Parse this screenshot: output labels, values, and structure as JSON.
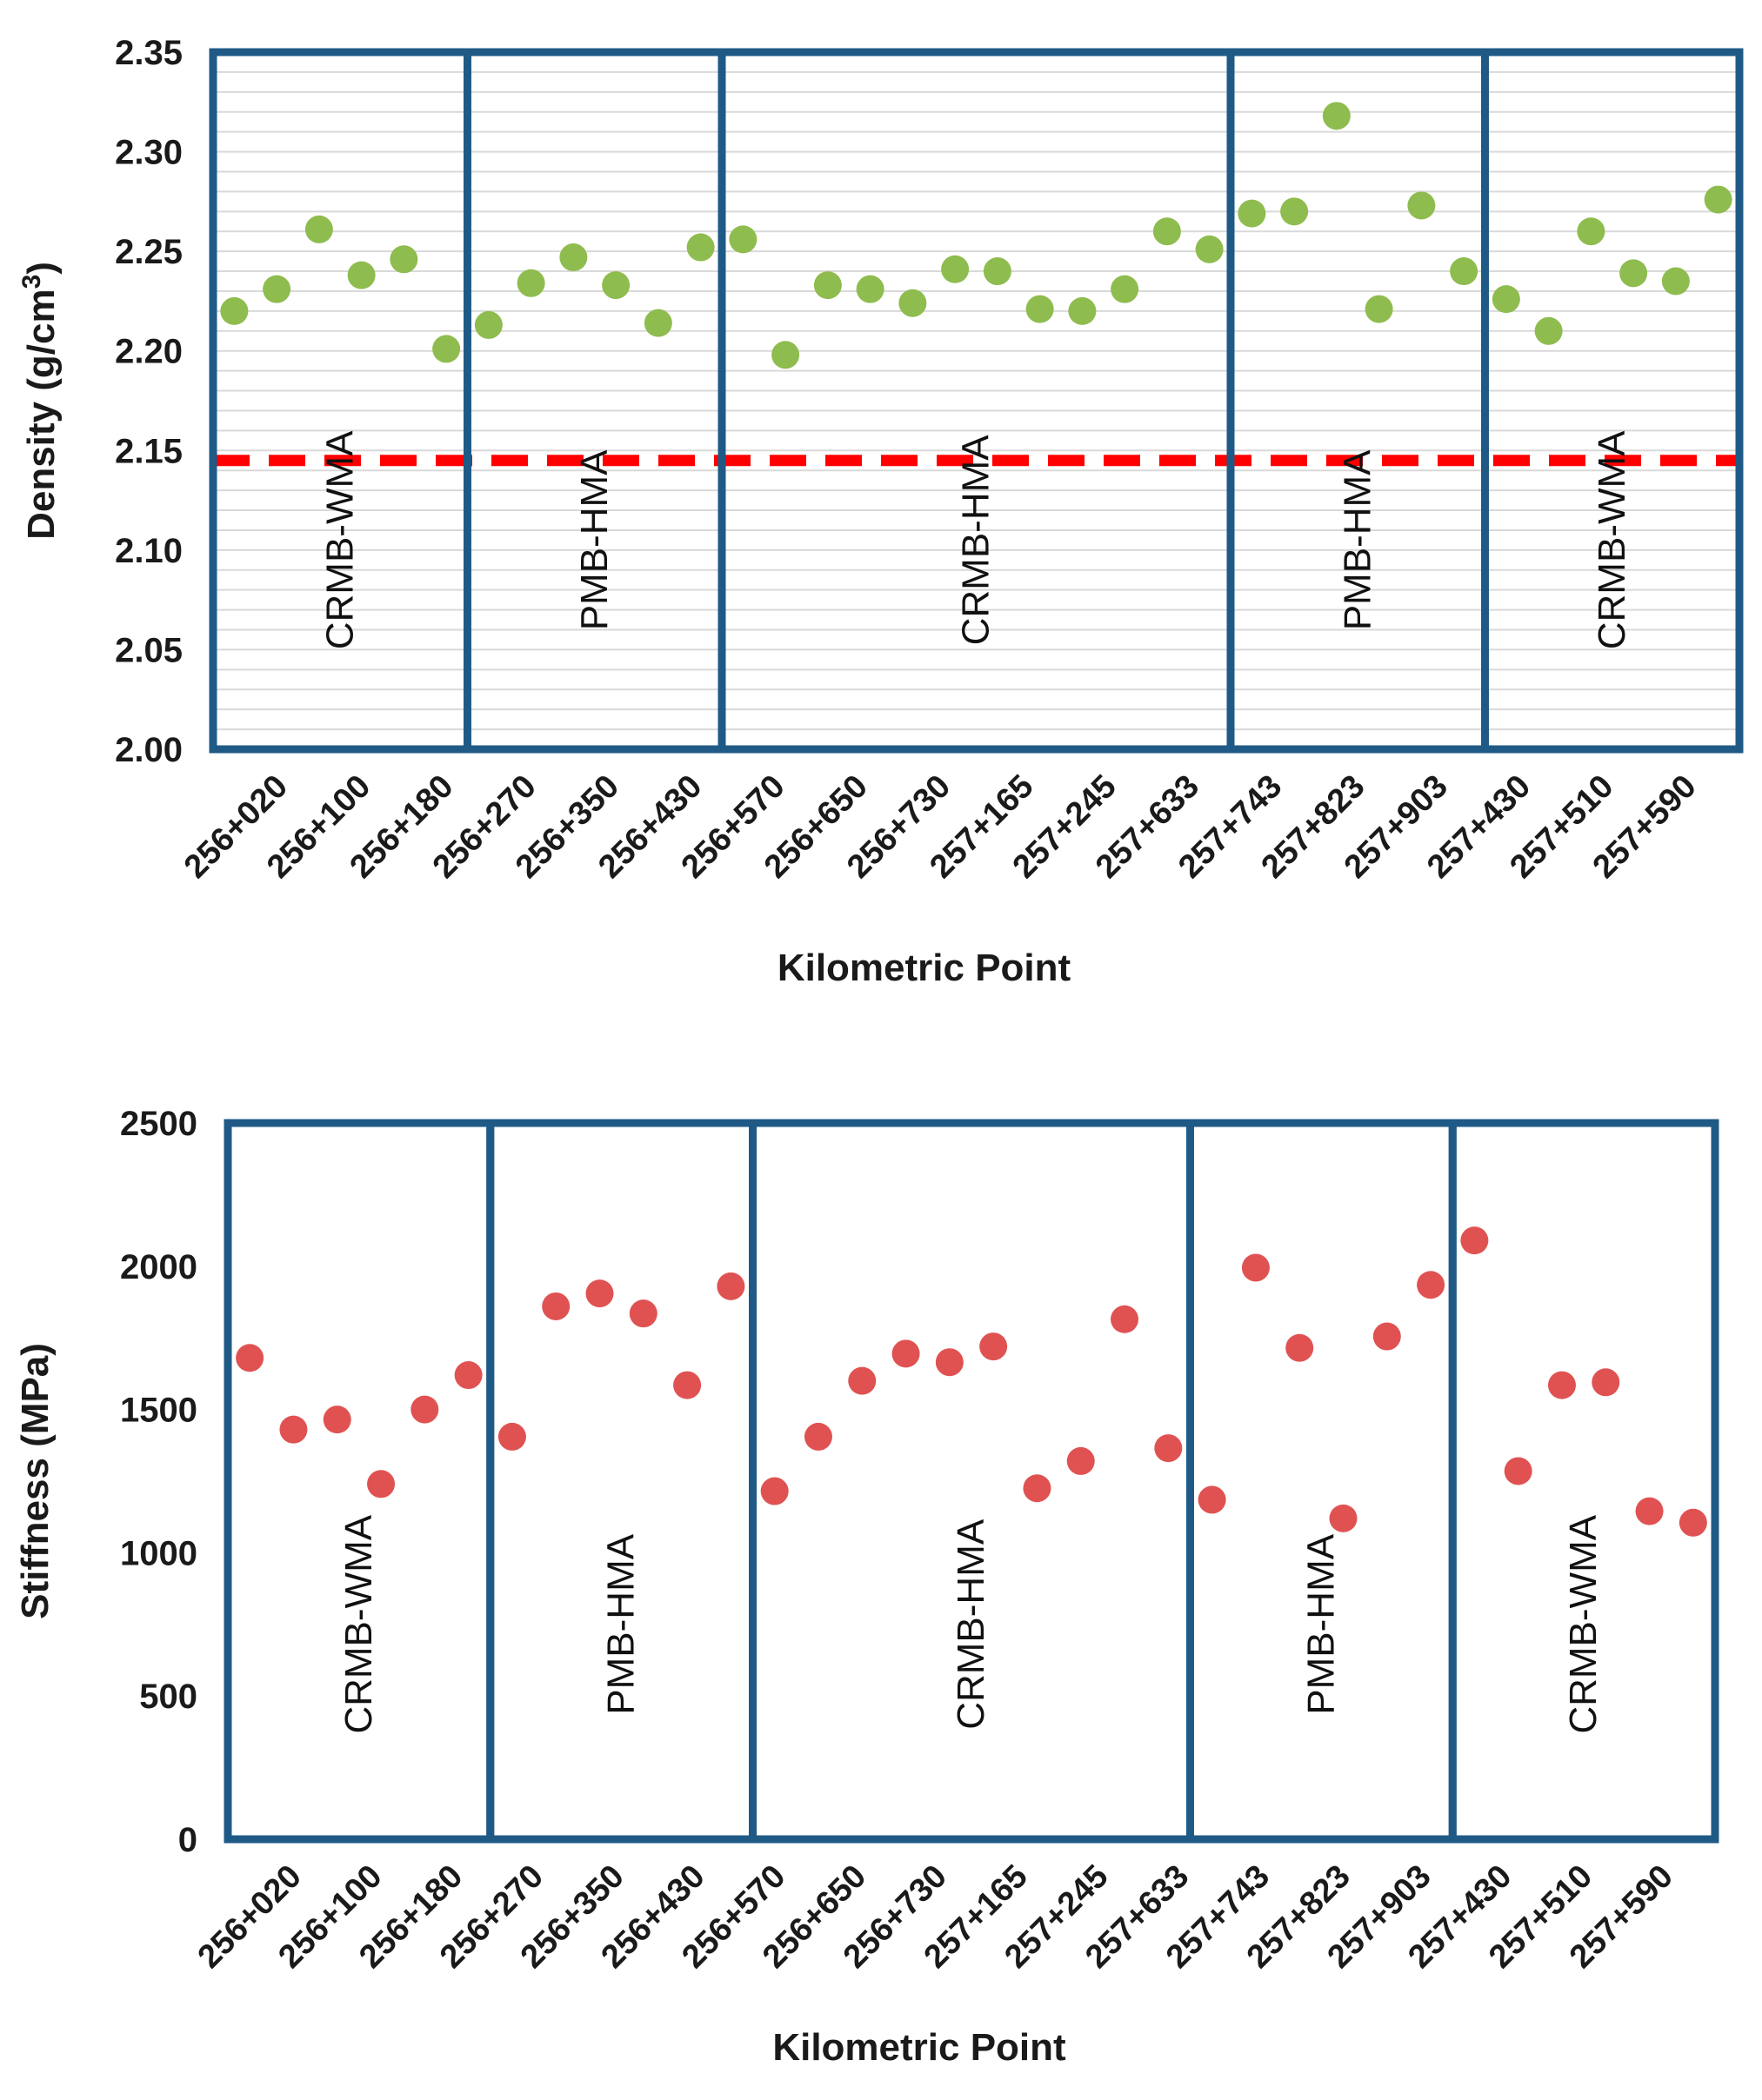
{
  "chart_data": [
    {
      "type": "scatter",
      "xlabel": "Kilometric Point",
      "ylabel_parts": [
        "Density (g/cm",
        "3",
        ")"
      ],
      "ylim": [
        2.0,
        2.35
      ],
      "yticks": [
        "2.00",
        "2.05",
        "2.10",
        "2.15",
        "2.20",
        "2.25",
        "2.30",
        "2.35"
      ],
      "grid": "horizontal",
      "threshold": 2.145,
      "colors": {
        "points": "#8fbc4f",
        "threshold": "#ff0000",
        "boxes": "#1f5a86"
      },
      "x_tick_labels": [
        "256+020",
        "256+100",
        "256+180",
        "256+270",
        "256+350",
        "256+430",
        "256+570",
        "256+650",
        "256+730",
        "257+165",
        "257+245",
        "257+633",
        "257+743",
        "257+823",
        "257+903",
        "257+430",
        "257+510",
        "257+590"
      ],
      "values": [
        2.22,
        2.231,
        2.261,
        2.238,
        2.246,
        2.201,
        2.213,
        2.234,
        2.247,
        2.233,
        2.214,
        2.252,
        2.256,
        2.198,
        2.233,
        2.231,
        2.224,
        2.241,
        2.24,
        2.221,
        2.22,
        2.231,
        2.26,
        2.251,
        2.269,
        2.27,
        2.318,
        2.221,
        2.273,
        2.24,
        2.226,
        2.21,
        2.26,
        2.239,
        2.235,
        2.276
      ],
      "sections": [
        {
          "label": "CRMB-WMA",
          "points": 6
        },
        {
          "label": "PMB-HMA",
          "points": 6
        },
        {
          "label": "CRMB-HMA",
          "points": 12
        },
        {
          "label": "PMB-HMA",
          "points": 6
        },
        {
          "label": "CRMB-WMA",
          "points": 6
        }
      ]
    },
    {
      "type": "scatter",
      "xlabel": "Kilometric Point",
      "ylabel": "Stiffness (MPa)",
      "ylim": [
        0,
        2500
      ],
      "yticks": [
        "0",
        "500",
        "1000",
        "1500",
        "2000",
        "2500"
      ],
      "grid": "none",
      "colors": {
        "points": "#e05252",
        "boxes": "#1f5a86"
      },
      "x_tick_labels": [
        "256+020",
        "256+100",
        "256+180",
        "256+270",
        "256+350",
        "256+430",
        "256+570",
        "256+650",
        "256+730",
        "257+165",
        "257+245",
        "257+633",
        "257+743",
        "257+823",
        "257+903",
        "257+430",
        "257+510",
        "257+590"
      ],
      "values": [
        1680,
        1430,
        1465,
        1240,
        1500,
        1620,
        1405,
        1860,
        1905,
        1835,
        1585,
        1930,
        1215,
        1405,
        1600,
        1695,
        1665,
        1720,
        1225,
        1320,
        1815,
        1365,
        1185,
        1995,
        1715,
        1120,
        1755,
        1935,
        2090,
        1285,
        1585,
        1595,
        1145,
        1105
      ],
      "sections": [
        {
          "label": "CRMB-WMA",
          "points": 6
        },
        {
          "label": "PMB-HMA",
          "points": 6
        },
        {
          "label": "CRMB-HMA",
          "points": 10
        },
        {
          "label": "PMB-HMA",
          "points": 6
        },
        {
          "label": "CRMB-WMA",
          "points": 6
        }
      ]
    }
  ]
}
